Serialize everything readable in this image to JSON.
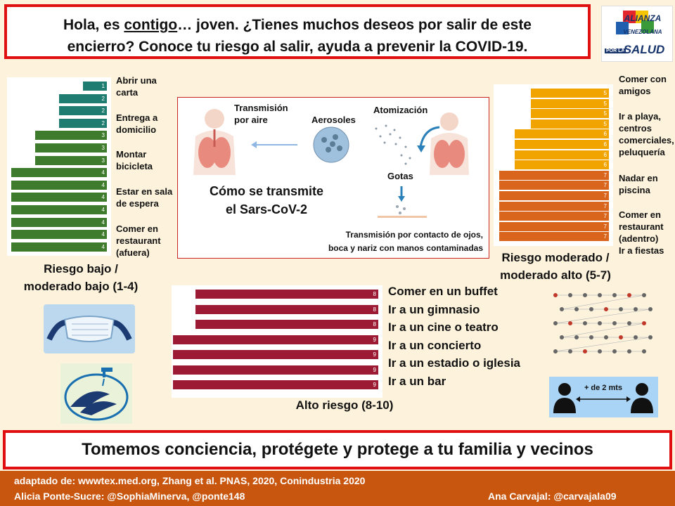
{
  "header": {
    "line1_pre": "Hola, es ",
    "line1_u": "contigo",
    "line1_post": "… joven. ¿Tienes muchos deseos por salir de este",
    "line2": "encierro? Conoce tu riesgo al salir, ayuda a prevenir la COVID-19."
  },
  "logo": {
    "line1": "ALIANZA",
    "line2": "VENEZOLANA",
    "line3": "POR LA",
    "line4": "SALUD"
  },
  "low": {
    "bars": [
      1,
      2,
      2,
      2,
      3,
      3,
      3,
      4,
      4,
      4,
      4,
      4,
      4,
      4
    ],
    "activities": [
      "Abrir una carta",
      "Entrega a domicilio",
      "Montar bicicleta",
      "Estar en sala de espera",
      "Comer en restaurant (afuera)"
    ],
    "caption_l1": "Riesgo bajo /",
    "caption_l2": "moderado  bajo (1-4)"
  },
  "moderate": {
    "bars": [
      5,
      5,
      5,
      5,
      6,
      6,
      6,
      6,
      7,
      7,
      7,
      7,
      7,
      7,
      7
    ],
    "activities": [
      "Comer con amigos",
      "Ir a playa, centros comerciales, peluquería",
      "Nadar en piscina",
      "Comer en restaurant (adentro)",
      "Ir a fiestas"
    ],
    "caption_l1": "Riesgo moderado /",
    "caption_l2": "moderado  alto (5-7)"
  },
  "high": {
    "bars": [
      8,
      8,
      8,
      9,
      9,
      9,
      9
    ],
    "activities": [
      "Comer en un buffet",
      "Ir a un gimnasio",
      "Ir a un cine o teatro",
      "Ir a un concierto",
      "Ir a un estadio o iglesia",
      "Ir a un bar"
    ],
    "caption": "Alto riesgo (8-10)"
  },
  "transmission": {
    "air_l1": "Transmisión",
    "air_l2": "por aire",
    "aerosols": "Aerosoles",
    "atomization": "Atomización",
    "drops": "Gotas",
    "title_l1": "Cómo se transmite",
    "title_l2": "el Sars-CoV-2",
    "contact_l1": "Transmisión por contacto de ojos,",
    "contact_l2": "boca y nariz con manos contaminadas"
  },
  "distance": {
    "label": "+ de 2 mts"
  },
  "footer": {
    "slogan": "Tomemos conciencia, protégete y protege a tu familia y vecinos"
  },
  "credits": {
    "source": "adaptado de: wwwtex.med.org, Zhang et al. PNAS, 2020, Conindustria 2020",
    "authors": "Alicia Ponte-Sucre: @SophiaMinerva,  @ponte148",
    "author2": "Ana Carvajal:  @carvajala09"
  },
  "colors": {
    "low": "#3f7b2c",
    "low_teal": "#1e7c70",
    "moderate_yellow": "#f1a400",
    "moderate_orange": "#d9641b",
    "high": "#9c1a33",
    "alert": "#e01010"
  }
}
